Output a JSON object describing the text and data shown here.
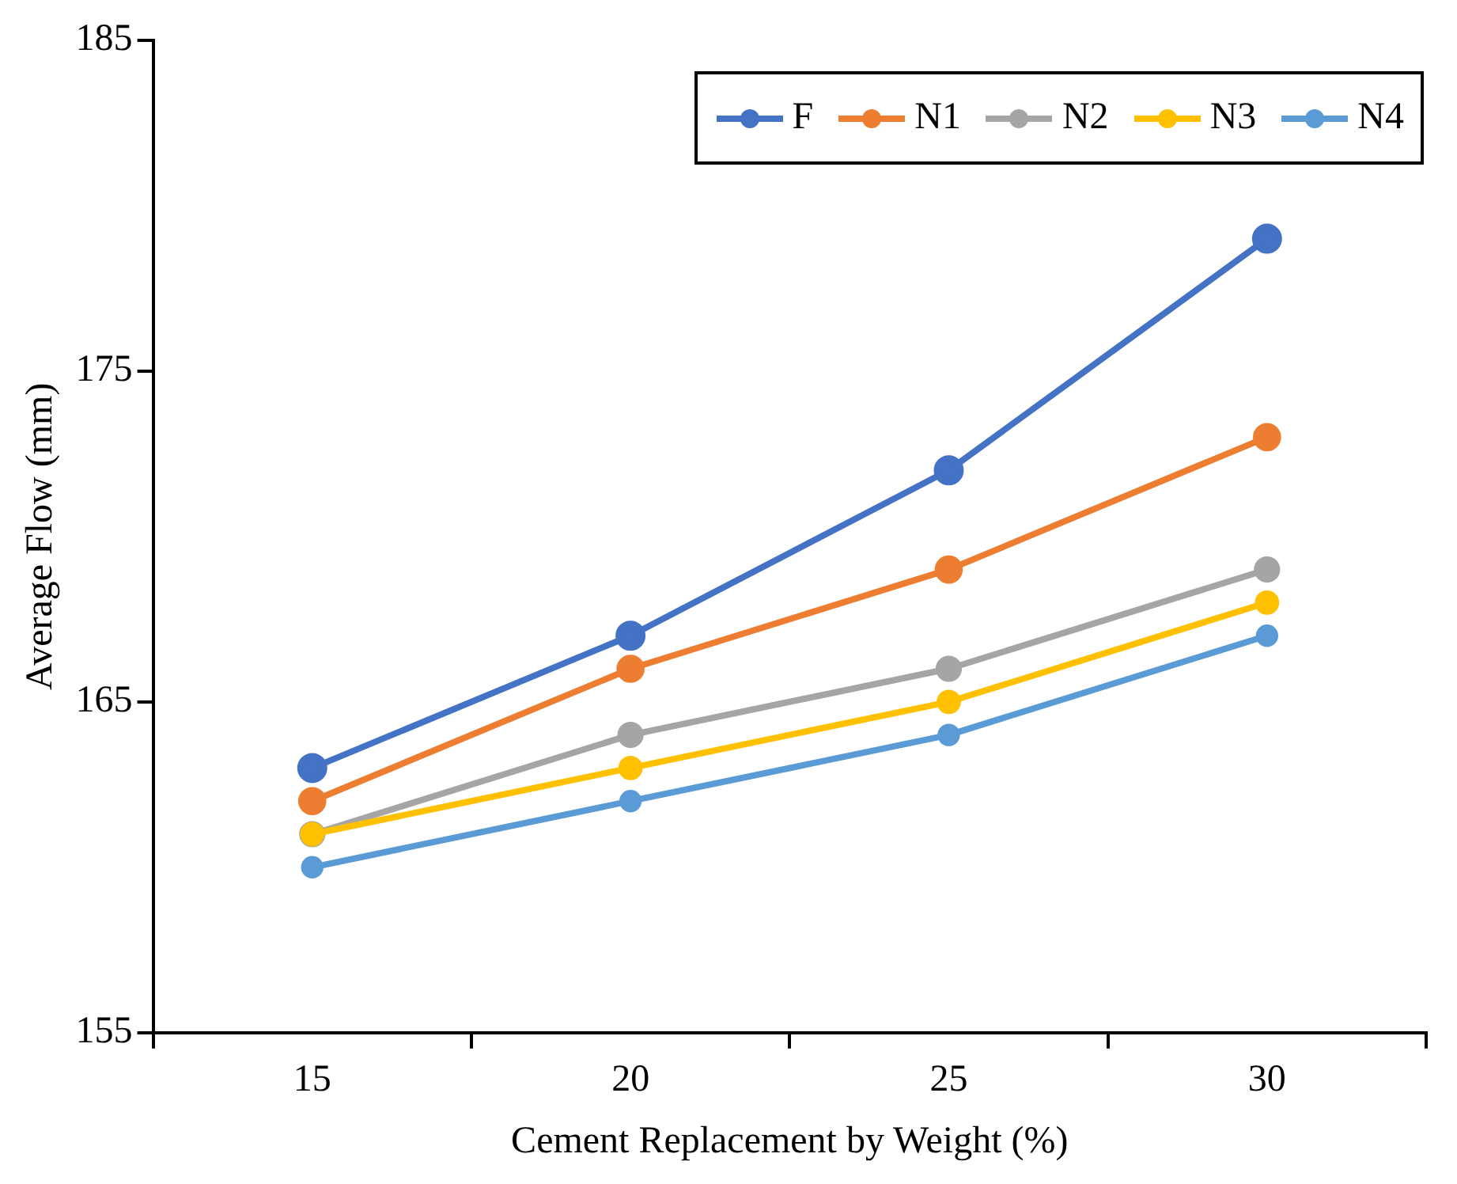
{
  "chart_data": {
    "type": "line",
    "xlabel": "Cement Replacement by Weight (%)",
    "ylabel": "Average Flow (mm)",
    "categories": [
      "15",
      "20",
      "25",
      "30"
    ],
    "series": [
      {
        "name": "F",
        "color": "#4472c4",
        "values": [
          163,
          167,
          172,
          179
        ]
      },
      {
        "name": "N1",
        "color": "#ed7d31",
        "values": [
          162,
          166,
          169,
          173
        ]
      },
      {
        "name": "N2",
        "color": "#a5a5a5",
        "values": [
          161,
          164,
          166,
          169
        ]
      },
      {
        "name": "N3",
        "color": "#ffc000",
        "values": [
          161,
          163,
          165,
          168
        ]
      },
      {
        "name": "N4",
        "color": "#5b9bd5",
        "values": [
          160,
          162,
          164,
          167
        ]
      }
    ],
    "ylim": [
      155,
      185
    ],
    "yticks": [
      155,
      165,
      175,
      185
    ],
    "grid": false,
    "legend": "top right",
    "marker": "circle",
    "line_style": "solid"
  }
}
